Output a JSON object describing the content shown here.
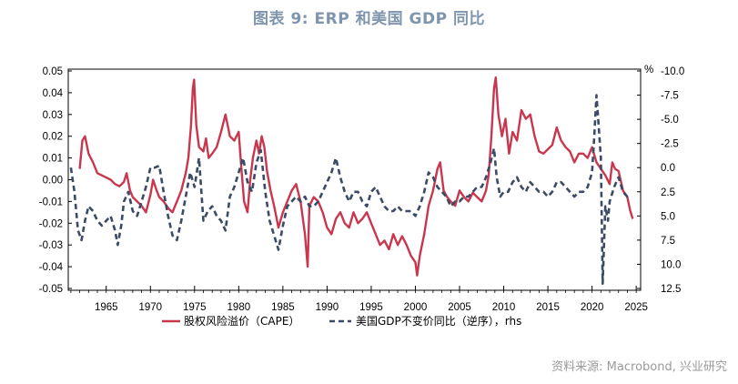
{
  "title": "图表 9:  ERP 和美国 GDP 同比",
  "source": "资料来源: Macrobond, 兴业研究",
  "colors": {
    "erp": "#c8374d",
    "gdp": "#3b4b66",
    "title": "#7f95ad"
  },
  "chart_data": {
    "type": "line",
    "x_ticks": [
      "1965",
      "1970",
      "1975",
      "1980",
      "1985",
      "1990",
      "1995",
      "2000",
      "2005",
      "2010",
      "2015",
      "2020",
      "2025"
    ],
    "xlim": [
      1960.7,
      2025.5
    ],
    "y_left": {
      "ticks": [
        "0.05",
        "0.04",
        "0.03",
        "0.02",
        "0.01",
        "0.00",
        "-0.01",
        "-0.02",
        "-0.03",
        "-0.04",
        "-0.05"
      ],
      "ylim": [
        -0.05,
        0.05
      ]
    },
    "y_right": {
      "unit": "%",
      "ticks": [
        "-10.0",
        "-7.5",
        "-5.0",
        "-2.5",
        "0.0",
        "2.5",
        "5.0",
        "7.5",
        "10.0",
        "12.5"
      ],
      "ylim": [
        -10,
        12.5
      ],
      "inverted": true
    },
    "legend": "bottom",
    "series": [
      {
        "name": "股权风险溢价（CAPE）",
        "axis": "left",
        "points": [
          [
            1962.0,
            0.005
          ],
          [
            1962.3,
            0.018
          ],
          [
            1962.6,
            0.02
          ],
          [
            1963.0,
            0.012
          ],
          [
            1963.5,
            0.008
          ],
          [
            1964.0,
            0.003
          ],
          [
            1964.5,
            0.002
          ],
          [
            1965.0,
            0.001
          ],
          [
            1965.5,
            0.0
          ],
          [
            1966.0,
            -0.002
          ],
          [
            1966.5,
            -0.003
          ],
          [
            1967.0,
            -0.001
          ],
          [
            1967.3,
            0.003
          ],
          [
            1967.7,
            -0.005
          ],
          [
            1968.0,
            -0.008
          ],
          [
            1968.5,
            -0.01
          ],
          [
            1969.0,
            -0.012
          ],
          [
            1969.5,
            -0.015
          ],
          [
            1970.0,
            -0.007
          ],
          [
            1970.3,
            0.0
          ],
          [
            1970.7,
            -0.005
          ],
          [
            1971.0,
            -0.008
          ],
          [
            1971.5,
            -0.01
          ],
          [
            1972.0,
            -0.013
          ],
          [
            1972.5,
            -0.015
          ],
          [
            1973.0,
            -0.01
          ],
          [
            1973.5,
            -0.005
          ],
          [
            1974.0,
            0.003
          ],
          [
            1974.3,
            0.01
          ],
          [
            1974.6,
            0.025
          ],
          [
            1974.8,
            0.042
          ],
          [
            1974.95,
            0.046
          ],
          [
            1975.2,
            0.025
          ],
          [
            1975.5,
            0.015
          ],
          [
            1976.0,
            0.013
          ],
          [
            1976.3,
            0.019
          ],
          [
            1976.6,
            0.01
          ],
          [
            1977.0,
            0.012
          ],
          [
            1977.5,
            0.015
          ],
          [
            1978.0,
            0.022
          ],
          [
            1978.5,
            0.03
          ],
          [
            1979.0,
            0.02
          ],
          [
            1979.5,
            0.018
          ],
          [
            1980.0,
            0.022
          ],
          [
            1980.3,
            0.005
          ],
          [
            1980.6,
            -0.01
          ],
          [
            1981.0,
            -0.015
          ],
          [
            1981.3,
            0.0
          ],
          [
            1981.6,
            0.01
          ],
          [
            1982.0,
            0.018
          ],
          [
            1982.3,
            0.012
          ],
          [
            1982.6,
            0.02
          ],
          [
            1982.9,
            0.015
          ],
          [
            1983.2,
            0.004
          ],
          [
            1983.6,
            -0.005
          ],
          [
            1984.0,
            -0.012
          ],
          [
            1984.5,
            -0.022
          ],
          [
            1985.0,
            -0.015
          ],
          [
            1985.5,
            -0.01
          ],
          [
            1986.0,
            -0.005
          ],
          [
            1986.5,
            -0.002
          ],
          [
            1987.0,
            -0.01
          ],
          [
            1987.5,
            -0.025
          ],
          [
            1987.8,
            -0.04
          ],
          [
            1988.0,
            -0.012
          ],
          [
            1988.5,
            -0.008
          ],
          [
            1989.0,
            -0.01
          ],
          [
            1989.5,
            -0.015
          ],
          [
            1990.0,
            -0.022
          ],
          [
            1990.5,
            -0.025
          ],
          [
            1991.0,
            -0.018
          ],
          [
            1991.5,
            -0.015
          ],
          [
            1992.0,
            -0.02
          ],
          [
            1992.5,
            -0.022
          ],
          [
            1993.0,
            -0.015
          ],
          [
            1993.5,
            -0.02
          ],
          [
            1994.0,
            -0.018
          ],
          [
            1994.5,
            -0.015
          ],
          [
            1995.0,
            -0.02
          ],
          [
            1995.5,
            -0.025
          ],
          [
            1996.0,
            -0.03
          ],
          [
            1996.5,
            -0.028
          ],
          [
            1997.0,
            -0.032
          ],
          [
            1997.5,
            -0.025
          ],
          [
            1998.0,
            -0.03
          ],
          [
            1998.5,
            -0.026
          ],
          [
            1999.0,
            -0.03
          ],
          [
            1999.5,
            -0.035
          ],
          [
            2000.0,
            -0.038
          ],
          [
            2000.2,
            -0.044
          ],
          [
            2000.5,
            -0.035
          ],
          [
            2001.0,
            -0.025
          ],
          [
            2001.5,
            -0.012
          ],
          [
            2002.0,
            -0.005
          ],
          [
            2002.5,
            0.005
          ],
          [
            2002.8,
            0.008
          ],
          [
            2003.2,
            -0.005
          ],
          [
            2003.6,
            -0.008
          ],
          [
            2004.0,
            -0.01
          ],
          [
            2004.5,
            -0.012
          ],
          [
            2005.0,
            -0.005
          ],
          [
            2005.5,
            -0.008
          ],
          [
            2006.0,
            -0.01
          ],
          [
            2006.5,
            -0.006
          ],
          [
            2007.0,
            -0.008
          ],
          [
            2007.5,
            -0.01
          ],
          [
            2008.0,
            -0.005
          ],
          [
            2008.3,
            0.002
          ],
          [
            2008.6,
            0.02
          ],
          [
            2008.9,
            0.042
          ],
          [
            2009.1,
            0.047
          ],
          [
            2009.4,
            0.03
          ],
          [
            2009.8,
            0.02
          ],
          [
            2010.2,
            0.028
          ],
          [
            2010.6,
            0.012
          ],
          [
            2011.0,
            0.022
          ],
          [
            2011.5,
            0.018
          ],
          [
            2012.0,
            0.032
          ],
          [
            2012.5,
            0.028
          ],
          [
            2013.0,
            0.03
          ],
          [
            2013.5,
            0.02
          ],
          [
            2014.0,
            0.013
          ],
          [
            2014.5,
            0.012
          ],
          [
            2015.0,
            0.014
          ],
          [
            2015.5,
            0.016
          ],
          [
            2016.0,
            0.024
          ],
          [
            2016.5,
            0.018
          ],
          [
            2017.0,
            0.015
          ],
          [
            2017.5,
            0.013
          ],
          [
            2018.0,
            0.008
          ],
          [
            2018.5,
            0.012
          ],
          [
            2019.0,
            0.012
          ],
          [
            2019.5,
            0.01
          ],
          [
            2020.0,
            0.015
          ],
          [
            2020.2,
            0.012
          ],
          [
            2020.5,
            0.008
          ],
          [
            2021.0,
            0.005
          ],
          [
            2021.5,
            0.002
          ],
          [
            2022.0,
            -0.002
          ],
          [
            2022.3,
            0.008
          ],
          [
            2022.6,
            0.005
          ],
          [
            2023.0,
            0.004
          ],
          [
            2023.5,
            -0.005
          ],
          [
            2024.0,
            -0.008
          ],
          [
            2024.3,
            -0.014
          ],
          [
            2024.6,
            -0.018
          ]
        ]
      },
      {
        "name": "美国GDP不变价同比（逆序），rhs",
        "axis": "right",
        "points": [
          [
            1961.0,
            0.0
          ],
          [
            1961.4,
            2.5
          ],
          [
            1961.8,
            6.5
          ],
          [
            1962.2,
            7.5
          ],
          [
            1962.6,
            5.5
          ],
          [
            1963.0,
            4.0
          ],
          [
            1963.5,
            4.5
          ],
          [
            1964.0,
            5.5
          ],
          [
            1964.5,
            6.0
          ],
          [
            1965.0,
            5.5
          ],
          [
            1965.5,
            5.0
          ],
          [
            1966.0,
            6.5
          ],
          [
            1966.3,
            8.0
          ],
          [
            1966.7,
            6.0
          ],
          [
            1967.0,
            3.5
          ],
          [
            1967.5,
            2.5
          ],
          [
            1968.0,
            4.5
          ],
          [
            1968.5,
            5.0
          ],
          [
            1969.0,
            3.5
          ],
          [
            1969.5,
            2.0
          ],
          [
            1970.0,
            0.0
          ],
          [
            1970.5,
            0.0
          ],
          [
            1971.0,
            -0.2
          ],
          [
            1971.5,
            2.5
          ],
          [
            1972.0,
            5.0
          ],
          [
            1972.5,
            7.0
          ],
          [
            1973.0,
            7.5
          ],
          [
            1973.5,
            5.5
          ],
          [
            1974.0,
            3.0
          ],
          [
            1974.5,
            0.5
          ],
          [
            1975.0,
            2.0
          ],
          [
            1975.5,
            -1.0
          ],
          [
            1976.0,
            5.5
          ],
          [
            1976.5,
            4.5
          ],
          [
            1977.0,
            4.0
          ],
          [
            1977.5,
            5.0
          ],
          [
            1978.0,
            5.5
          ],
          [
            1978.5,
            6.5
          ],
          [
            1979.0,
            3.0
          ],
          [
            1979.5,
            2.0
          ],
          [
            1980.0,
            0.5
          ],
          [
            1980.5,
            -1.0
          ],
          [
            1981.0,
            1.5
          ],
          [
            1981.5,
            2.5
          ],
          [
            1982.0,
            -0.5
          ],
          [
            1982.5,
            -1.8
          ],
          [
            1983.0,
            2.5
          ],
          [
            1983.5,
            5.5
          ],
          [
            1984.0,
            7.0
          ],
          [
            1984.5,
            8.5
          ],
          [
            1985.0,
            6.0
          ],
          [
            1985.5,
            4.0
          ],
          [
            1986.0,
            3.5
          ],
          [
            1986.5,
            3.0
          ],
          [
            1987.0,
            3.5
          ],
          [
            1987.5,
            3.0
          ],
          [
            1988.0,
            4.0
          ],
          [
            1988.5,
            4.0
          ],
          [
            1989.0,
            3.5
          ],
          [
            1989.5,
            2.5
          ],
          [
            1990.0,
            1.5
          ],
          [
            1990.5,
            0.5
          ],
          [
            1991.0,
            -1.0
          ],
          [
            1991.5,
            1.0
          ],
          [
            1992.0,
            2.5
          ],
          [
            1992.5,
            3.5
          ],
          [
            1993.0,
            2.5
          ],
          [
            1993.5,
            2.5
          ],
          [
            1994.0,
            3.5
          ],
          [
            1994.5,
            4.0
          ],
          [
            1995.0,
            2.5
          ],
          [
            1995.5,
            2.0
          ],
          [
            1996.0,
            3.0
          ],
          [
            1996.5,
            4.0
          ],
          [
            1997.0,
            4.5
          ],
          [
            1997.5,
            4.5
          ],
          [
            1998.0,
            4.0
          ],
          [
            1998.5,
            4.5
          ],
          [
            1999.0,
            4.5
          ],
          [
            1999.5,
            4.5
          ],
          [
            2000.0,
            5.0
          ],
          [
            2000.5,
            4.0
          ],
          [
            2001.0,
            2.5
          ],
          [
            2001.5,
            0.5
          ],
          [
            2002.0,
            1.0
          ],
          [
            2002.5,
            2.0
          ],
          [
            2003.0,
            2.5
          ],
          [
            2003.5,
            3.0
          ],
          [
            2004.0,
            4.0
          ],
          [
            2004.5,
            3.5
          ],
          [
            2005.0,
            3.5
          ],
          [
            2005.5,
            3.0
          ],
          [
            2006.0,
            3.0
          ],
          [
            2006.5,
            2.5
          ],
          [
            2007.0,
            2.0
          ],
          [
            2007.5,
            2.0
          ],
          [
            2008.0,
            1.0
          ],
          [
            2008.5,
            -0.5
          ],
          [
            2008.9,
            -2.0
          ],
          [
            2009.2,
            1.0
          ],
          [
            2009.6,
            3.0
          ],
          [
            2010.0,
            2.5
          ],
          [
            2010.5,
            2.5
          ],
          [
            2011.0,
            1.5
          ],
          [
            2011.5,
            1.0
          ],
          [
            2012.0,
            2.0
          ],
          [
            2012.5,
            2.5
          ],
          [
            2013.0,
            1.5
          ],
          [
            2013.5,
            2.0
          ],
          [
            2014.0,
            2.5
          ],
          [
            2014.5,
            2.5
          ],
          [
            2015.0,
            3.0
          ],
          [
            2015.5,
            2.5
          ],
          [
            2016.0,
            1.5
          ],
          [
            2016.5,
            1.5
          ],
          [
            2017.0,
            2.0
          ],
          [
            2017.5,
            2.5
          ],
          [
            2018.0,
            3.0
          ],
          [
            2018.5,
            2.5
          ],
          [
            2019.0,
            2.5
          ],
          [
            2019.5,
            2.0
          ],
          [
            2020.0,
            0.5
          ],
          [
            2020.2,
            -2.5
          ],
          [
            2020.5,
            -7.5
          ],
          [
            2020.7,
            -5.0
          ],
          [
            2021.0,
            -1.0
          ],
          [
            2021.2,
            12.0
          ],
          [
            2021.5,
            4.0
          ],
          [
            2021.8,
            5.5
          ],
          [
            2022.0,
            3.5
          ],
          [
            2022.5,
            2.0
          ],
          [
            2023.0,
            1.0
          ],
          [
            2023.5,
            2.5
          ],
          [
            2024.0,
            3.0
          ],
          [
            2024.3,
            3.0
          ]
        ]
      }
    ]
  }
}
